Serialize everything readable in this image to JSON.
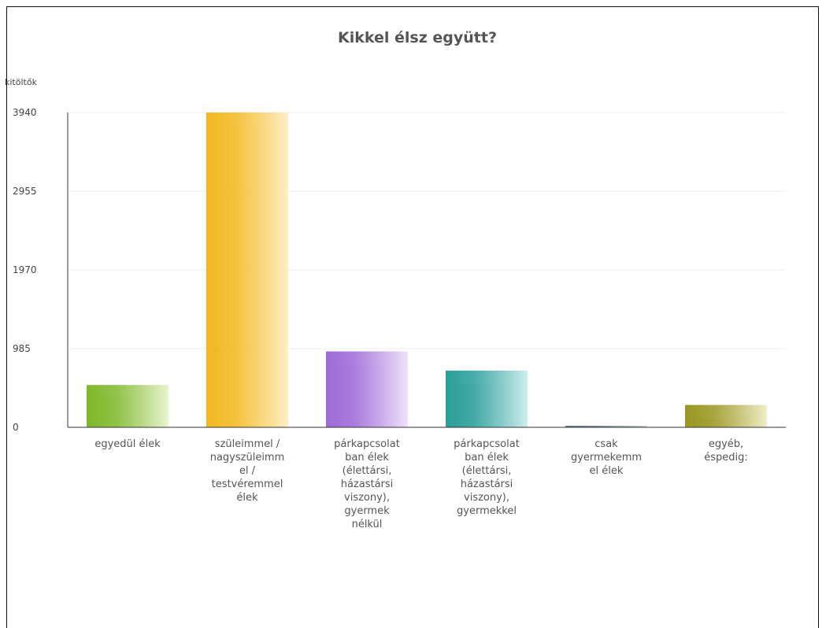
{
  "chart_data": {
    "type": "bar",
    "title": "Kikkel élsz együtt?",
    "ylabel": "kitöltők",
    "xlabel": "",
    "ylim": [
      0,
      3940
    ],
    "yticks": [
      0,
      985,
      1970,
      2955,
      3940
    ],
    "grid": true,
    "legend": "none",
    "categories": [
      [
        "egyedül élek"
      ],
      [
        "szüleimmel /",
        "nagyszüleimm",
        "el /",
        "testvéremmel",
        "élek"
      ],
      [
        "párkapcsolat",
        "ban élek",
        "(élettársi,",
        "házastársi",
        "viszony),",
        "gyermek",
        "nélkül"
      ],
      [
        "párkapcsolat",
        "ban élek",
        "(élettársi,",
        "házastársi",
        "viszony),",
        "gyermekkel"
      ],
      [
        "csak",
        "gyermekemm",
        "el élek"
      ],
      [
        "egyéb,",
        "éspedig:"
      ]
    ],
    "values": [
      530,
      3940,
      950,
      710,
      20,
      280
    ],
    "colors": [
      [
        "#7fb82a",
        "#eaf4d0"
      ],
      [
        "#f2b820",
        "#fdf0c8"
      ],
      [
        "#9f6ad8",
        "#efe4fa"
      ],
      [
        "#2a9e9a",
        "#cfeeee"
      ],
      [
        "#5c7c80",
        "#c8d8d8"
      ],
      [
        "#9a9620",
        "#f0eec8"
      ]
    ]
  }
}
